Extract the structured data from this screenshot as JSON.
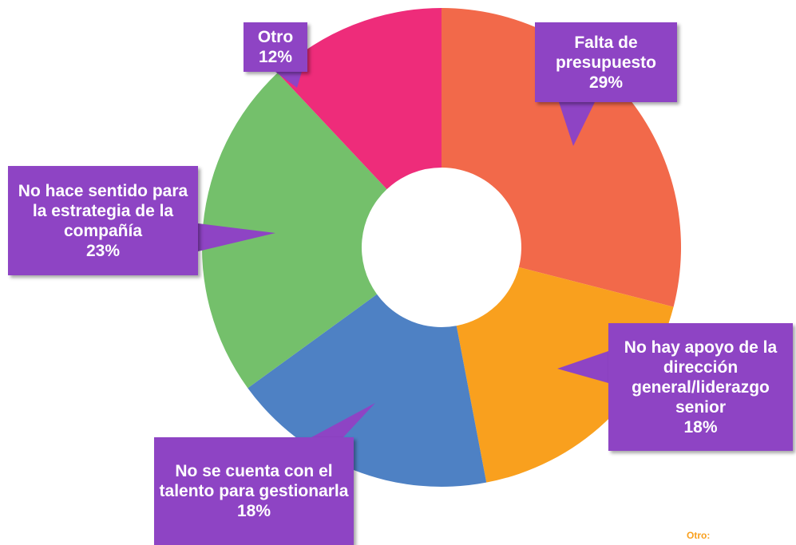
{
  "chart_data": {
    "type": "donut",
    "categories": [
      "Falta de presupuesto",
      "No hay apoyo de la dirección general/liderazgo senior",
      "No se cuenta con el talento para gestionarla",
      "No hace sentido para la estrategia de la compañía",
      "Otro"
    ],
    "values": [
      29,
      18,
      18,
      23,
      12
    ],
    "value_labels": [
      "29%",
      "18%",
      "18%",
      "23%",
      "12%"
    ],
    "colors": [
      "#f2694a",
      "#f9a01e",
      "#4e81c4",
      "#74c06b",
      "#ee2c7a"
    ],
    "footnote": "Otro:"
  }
}
